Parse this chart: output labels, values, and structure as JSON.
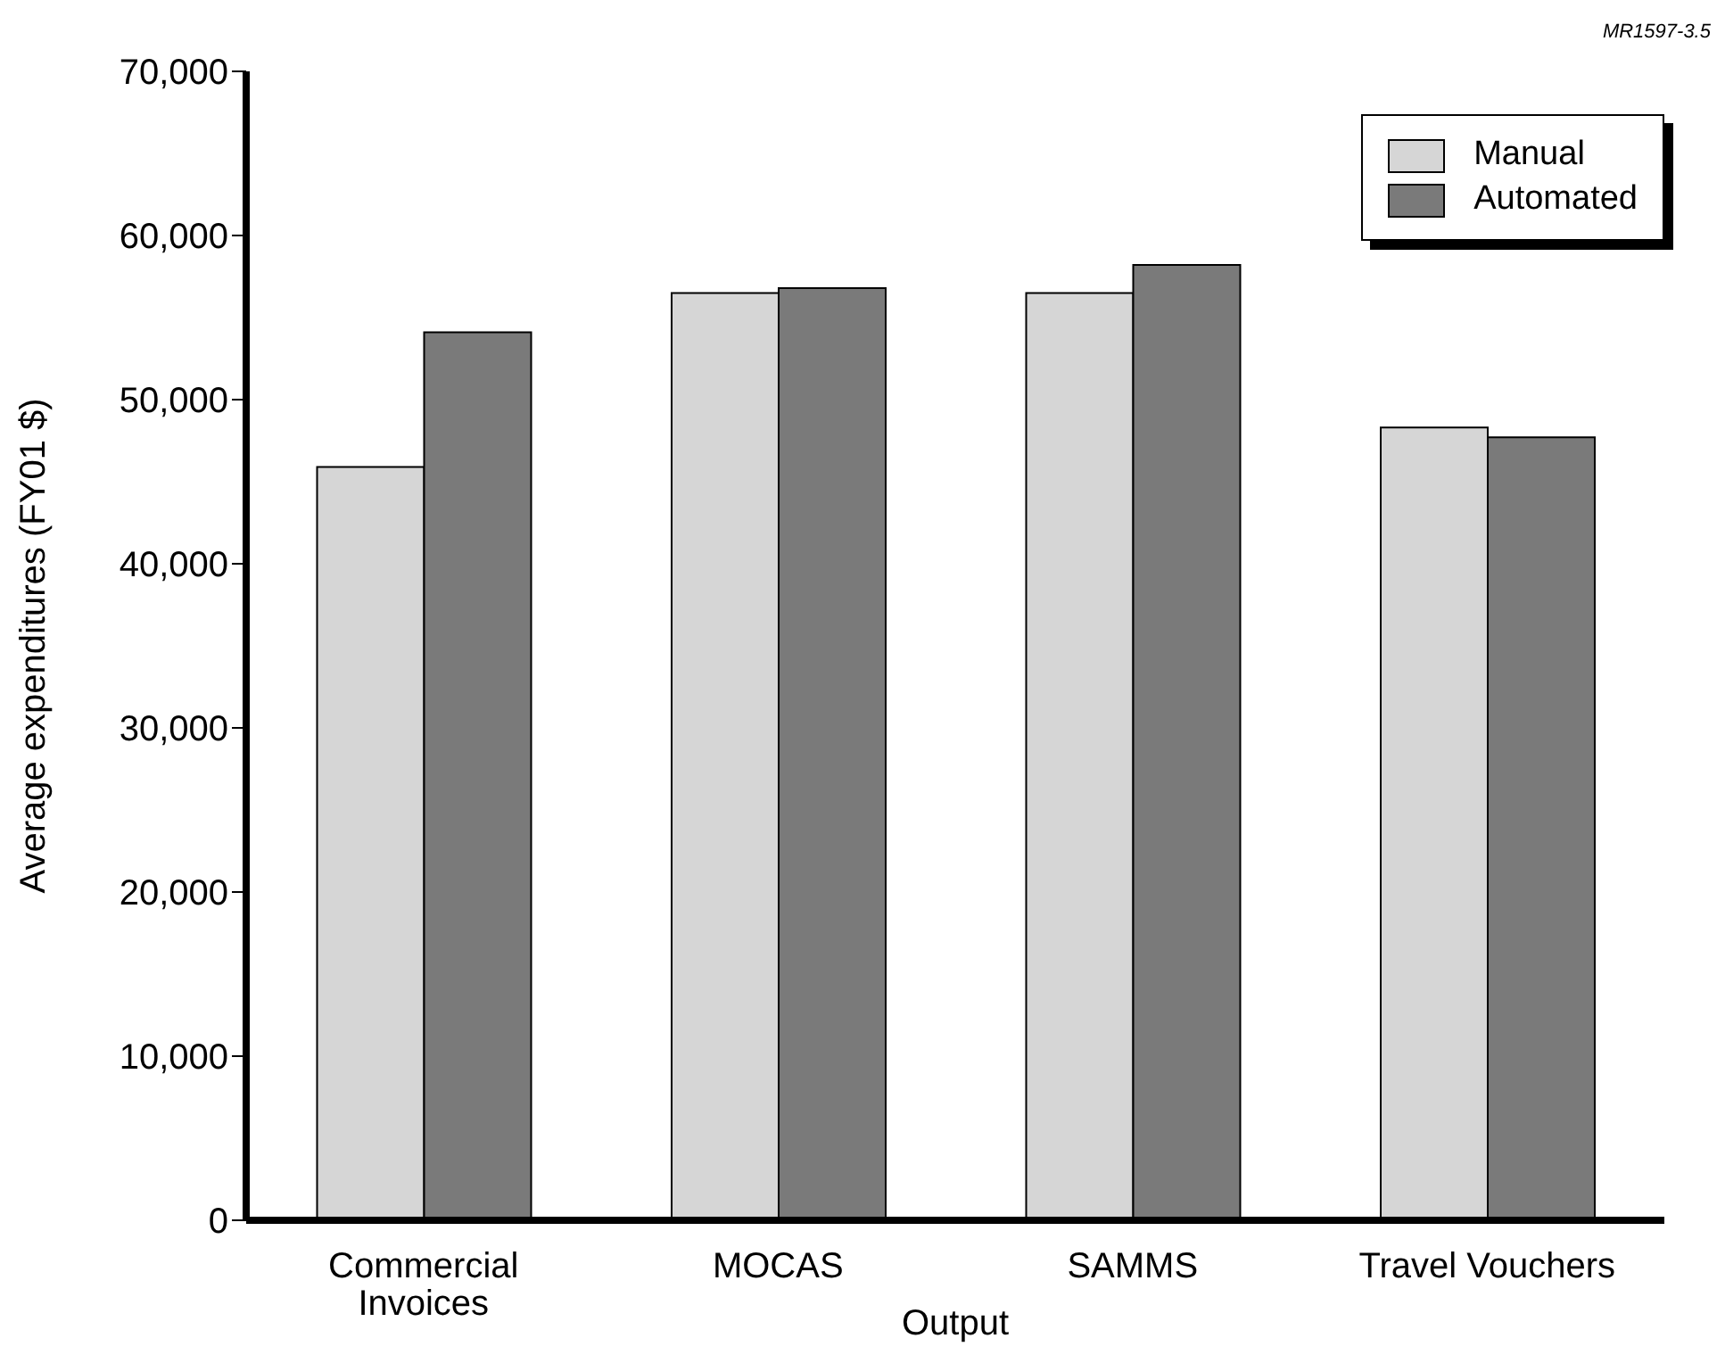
{
  "chart_data": {
    "type": "bar",
    "xlabel": "Output",
    "ylabel": "Average expenditures (FY01 $)",
    "categories": [
      "Commercial Invoices",
      "MOCAS",
      "SAMMS",
      "Travel Vouchers"
    ],
    "series": [
      {
        "name": "Manual",
        "color": "#d6d6d6",
        "values": [
          45900,
          56500,
          56500,
          48300
        ]
      },
      {
        "name": "Automated",
        "color": "#7a7a7a",
        "values": [
          54100,
          56800,
          58200,
          47700
        ]
      }
    ],
    "ylim": [
      0,
      70000
    ],
    "yticks": [
      0,
      {
        "value": 10000,
        "label": "10,000"
      },
      {
        "value": 20000,
        "label": "20,000"
      },
      {
        "value": 30000,
        "label": "30,000"
      },
      {
        "value": 40000,
        "label": "40,000"
      },
      {
        "value": 50000,
        "label": "50,000"
      },
      {
        "value": 60000,
        "label": "60,000"
      },
      {
        "value": 70000,
        "label": "70,000"
      }
    ],
    "legend": "top right",
    "annotations": [
      "MR1597-3.5"
    ]
  }
}
